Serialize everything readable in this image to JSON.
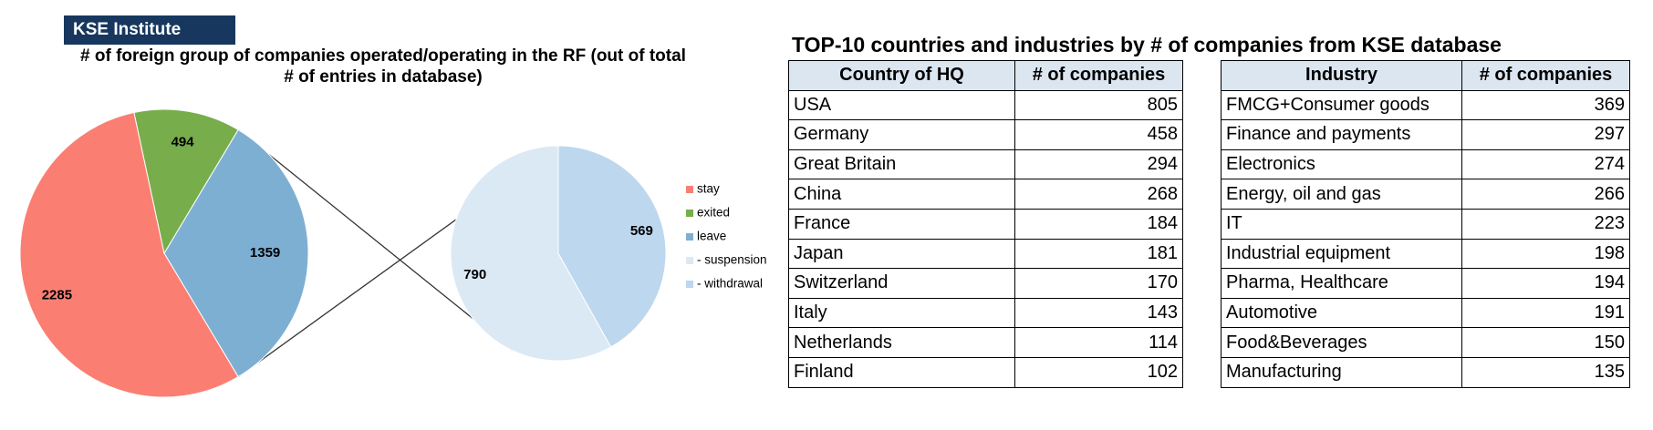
{
  "badge": "KSE Institute",
  "chart_data": {
    "type": "pie",
    "title": "# of foreign group of companies operated/operating in the RF (out of total # of entries in database)",
    "title_lines": [
      "# of foreign group of companies operated/operating in the RF (out of total",
      "# of entries in database)"
    ],
    "main_pie": {
      "labels": [
        "stay",
        "exited",
        "leave"
      ],
      "values": [
        2285,
        494,
        1359
      ],
      "colors": [
        "#fa7f72",
        "#78ad4b",
        "#7dafd3"
      ]
    },
    "secondary_pie": {
      "of": "leave",
      "labels": [
        "- suspension",
        "- withdrawal"
      ],
      "values": [
        790,
        569
      ],
      "colors": [
        "#dbe9f5",
        "#bdd7ee"
      ]
    },
    "legend": {
      "position": "right",
      "items": [
        {
          "label": "stay",
          "color": "#fa7f72"
        },
        {
          "label": "exited",
          "color": "#78ad4b"
        },
        {
          "label": "leave",
          "color": "#7dafd3"
        },
        {
          "label": "- suspension",
          "color": "#dbe9f5"
        },
        {
          "label": "- withdrawal",
          "color": "#bdd7ee"
        }
      ]
    }
  },
  "tables": {
    "title": "TOP-10 countries and industries by # of companies from KSE database",
    "country": {
      "headers": [
        "Country of HQ",
        "# of companies"
      ],
      "rows": [
        [
          "USA",
          "805"
        ],
        [
          "Germany",
          "458"
        ],
        [
          "Great Britain",
          "294"
        ],
        [
          "China",
          "268"
        ],
        [
          "France",
          "184"
        ],
        [
          "Japan",
          "181"
        ],
        [
          "Switzerland",
          "170"
        ],
        [
          "Italy",
          "143"
        ],
        [
          "Netherlands",
          "114"
        ],
        [
          "Finland",
          "102"
        ]
      ]
    },
    "industry": {
      "headers": [
        "Industry",
        "# of companies"
      ],
      "rows": [
        [
          "FMCG+Consumer goods",
          "369"
        ],
        [
          "Finance and payments",
          "297"
        ],
        [
          "Electronics",
          "274"
        ],
        [
          "Energy, oil and gas",
          "266"
        ],
        [
          "IT",
          "223"
        ],
        [
          "Industrial equipment",
          "198"
        ],
        [
          "Pharma, Healthcare",
          "194"
        ],
        [
          "Automotive",
          "191"
        ],
        [
          "Food&Beverages",
          "150"
        ],
        [
          "Manufacturing",
          "135"
        ]
      ]
    }
  }
}
